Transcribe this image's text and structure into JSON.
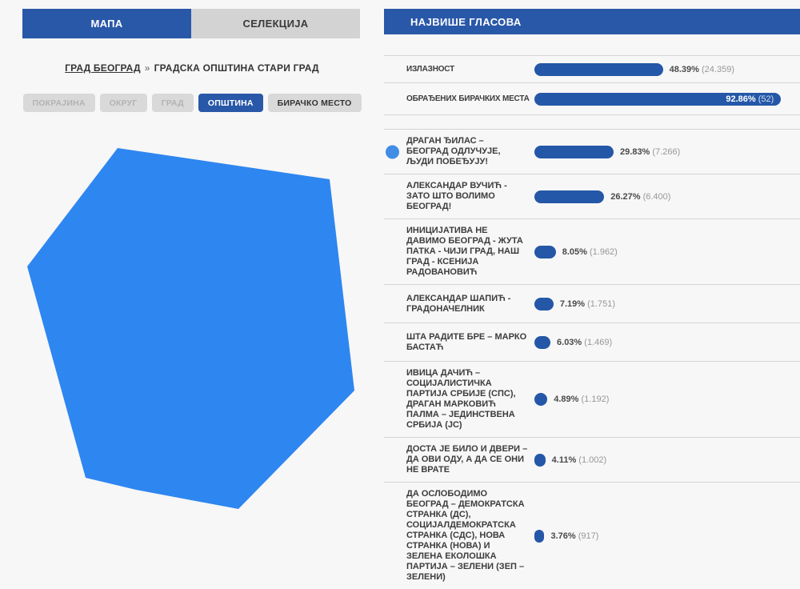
{
  "colors": {
    "accent_blue": "#2a58a8",
    "bar_blue": "#2457a7",
    "map_region_blue": "#2e86f0",
    "selected_dot_blue": "#418de6",
    "page_background": "#f7f7f7",
    "inactive_gray": "#d9d9d9",
    "separator_gray": "#d4d4d4"
  },
  "tabs": [
    {
      "label": "МАПА",
      "active": true
    },
    {
      "label": "СЕЛЕКЦИЈА",
      "active": false
    }
  ],
  "breadcrumb": {
    "link": "ГРАД БЕОГРАД",
    "separator": "»",
    "current": "ГРАДСКА ОПШТИНА СТАРИ ГРАД"
  },
  "level_buttons": [
    {
      "label": "ПОКРАЈИНА",
      "state": "disabled"
    },
    {
      "label": "ОКРУГ",
      "state": "disabled"
    },
    {
      "label": "ГРАД",
      "state": "disabled"
    },
    {
      "label": "ОПШТИНА",
      "state": "active"
    },
    {
      "label": "БИРАЧКО МЕСТО",
      "state": "enabled"
    }
  ],
  "map": {
    "region_name": "ГРАДСКА ОПШТИНА СТАРИ ГРАД",
    "region_color": "#2e86f0"
  },
  "results_panel": {
    "title": "НАЈВИШЕ ГЛАСОВА",
    "stats": [
      {
        "label": "ИЗЛАЗНОСТ",
        "pct": 48.39,
        "pct_label": "48.39%",
        "count_label": "(24.359)",
        "value_inside": false
      },
      {
        "label": "ОБРАЂЕНИХ БИРАЧКИХ МЕСТА",
        "pct": 92.86,
        "pct_label": "92.86%",
        "count_label": "(52)",
        "value_inside": true
      }
    ],
    "candidates": [
      {
        "label": "ДРАГАН ЂИЛАС – БЕОГРАД ОДЛУЧУЈЕ, ЉУДИ ПОБЕЂУЈУ!",
        "pct": 29.83,
        "pct_label": "29.83%",
        "count_label": "(7.266)",
        "marker": true
      },
      {
        "label": "АЛЕКСАНДАР ВУЧИЋ - ЗАТО ШТО ВОЛИМО БЕОГРАД!",
        "pct": 26.27,
        "pct_label": "26.27%",
        "count_label": "(6.400)",
        "marker": false
      },
      {
        "label": "ИНИЦИЈАТИВА НЕ ДАВИМО БЕОГРАД - ЖУТА ПАТКА - ЧИЈИ ГРАД, НАШ ГРАД - КСЕНИЈА РАДОВАНОВИЋ",
        "pct": 8.05,
        "pct_label": "8.05%",
        "count_label": "(1.962)",
        "marker": false
      },
      {
        "label": "АЛЕКСАНДАР ШАПИЋ - ГРАДОНАЧЕЛНИК",
        "pct": 7.19,
        "pct_label": "7.19%",
        "count_label": "(1.751)",
        "marker": false
      },
      {
        "label": "ШТА РАДИТЕ БРЕ – МАРКО БАСТАЋ",
        "pct": 6.03,
        "pct_label": "6.03%",
        "count_label": "(1.469)",
        "marker": false
      },
      {
        "label": "ИВИЦА ДАЧИЋ – СОЦИЈАЛИСТИЧКА ПАРТИЈА СРБИЈЕ (СПС), ДРАГАН МАРКОВИЋ ПАЛМА – ЈЕДИНСТВЕНА СРБИЈА (ЈС)",
        "pct": 4.89,
        "pct_label": "4.89%",
        "count_label": "(1.192)",
        "marker": false
      },
      {
        "label": "ДОСТА ЈЕ БИЛО И ДВЕРИ – ДА ОВИ ОДУ, А ДА СЕ ОНИ НЕ ВРАТЕ",
        "pct": 4.11,
        "pct_label": "4.11%",
        "count_label": "(1.002)",
        "marker": false
      },
      {
        "label": "ДА ОСЛОБОДИМО БЕОГРАД – ДЕМОКРАТСКА СТРАНКА (ДС), СОЦИЈАЛДЕМОКРАТСКА СТРАНКА (СДС), НОВА СТРАНКА (НОВА) И ЗЕЛЕНА ЕКОЛОШКА ПАРТИЈА – ЗЕЛЕНИ (ЗЕП – ЗЕЛЕНИ)",
        "pct": 3.76,
        "pct_label": "3.76%",
        "count_label": "(917)",
        "marker": false
      }
    ]
  }
}
